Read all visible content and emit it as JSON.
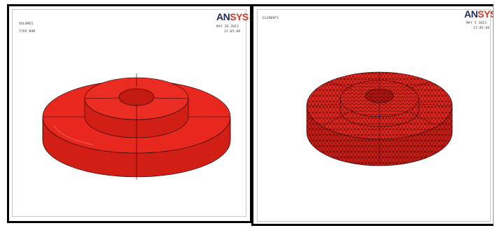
{
  "left_viewport": {
    "label_line1": "VOLUMES",
    "label_line2": "TYPE NUM",
    "date": "MAY 20 2013",
    "time": "13:05:08",
    "logo_part1": "AN",
    "logo_part2": "SYS"
  },
  "right_viewport": {
    "label_line1": "ELEMENTS",
    "date": "MAY 5 2013",
    "time": "13:05:08",
    "logo_part1": "AN",
    "logo_part2": "SYS"
  },
  "colors": {
    "model_face": "#e8281e",
    "model_side": "#d11f16",
    "model_edge": "#1a0000"
  }
}
